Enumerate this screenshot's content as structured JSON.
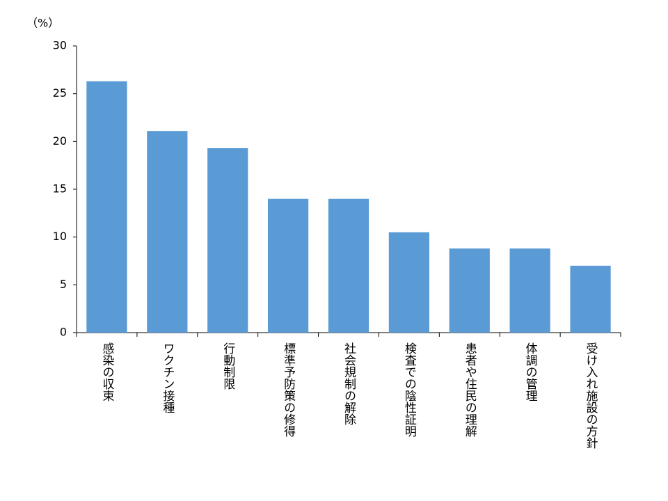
{
  "chart_data": {
    "type": "bar",
    "ylabel": "（%）",
    "categories": [
      "感染の収束",
      "ワクチン接種",
      "行動制限",
      "標準予防策の修得",
      "社会規制の解除",
      "検査での陰性証明",
      "患者や住民の理解",
      "体調の管理",
      "受け入れ施設の方針"
    ],
    "values": [
      26.3,
      21.1,
      19.3,
      14.0,
      14.0,
      10.5,
      8.8,
      8.8,
      7.0
    ],
    "color": "#5b9bd5",
    "ylim": [
      0,
      30
    ],
    "yticks": [
      0,
      5,
      10,
      15,
      20,
      25,
      30
    ],
    "grid": false
  }
}
